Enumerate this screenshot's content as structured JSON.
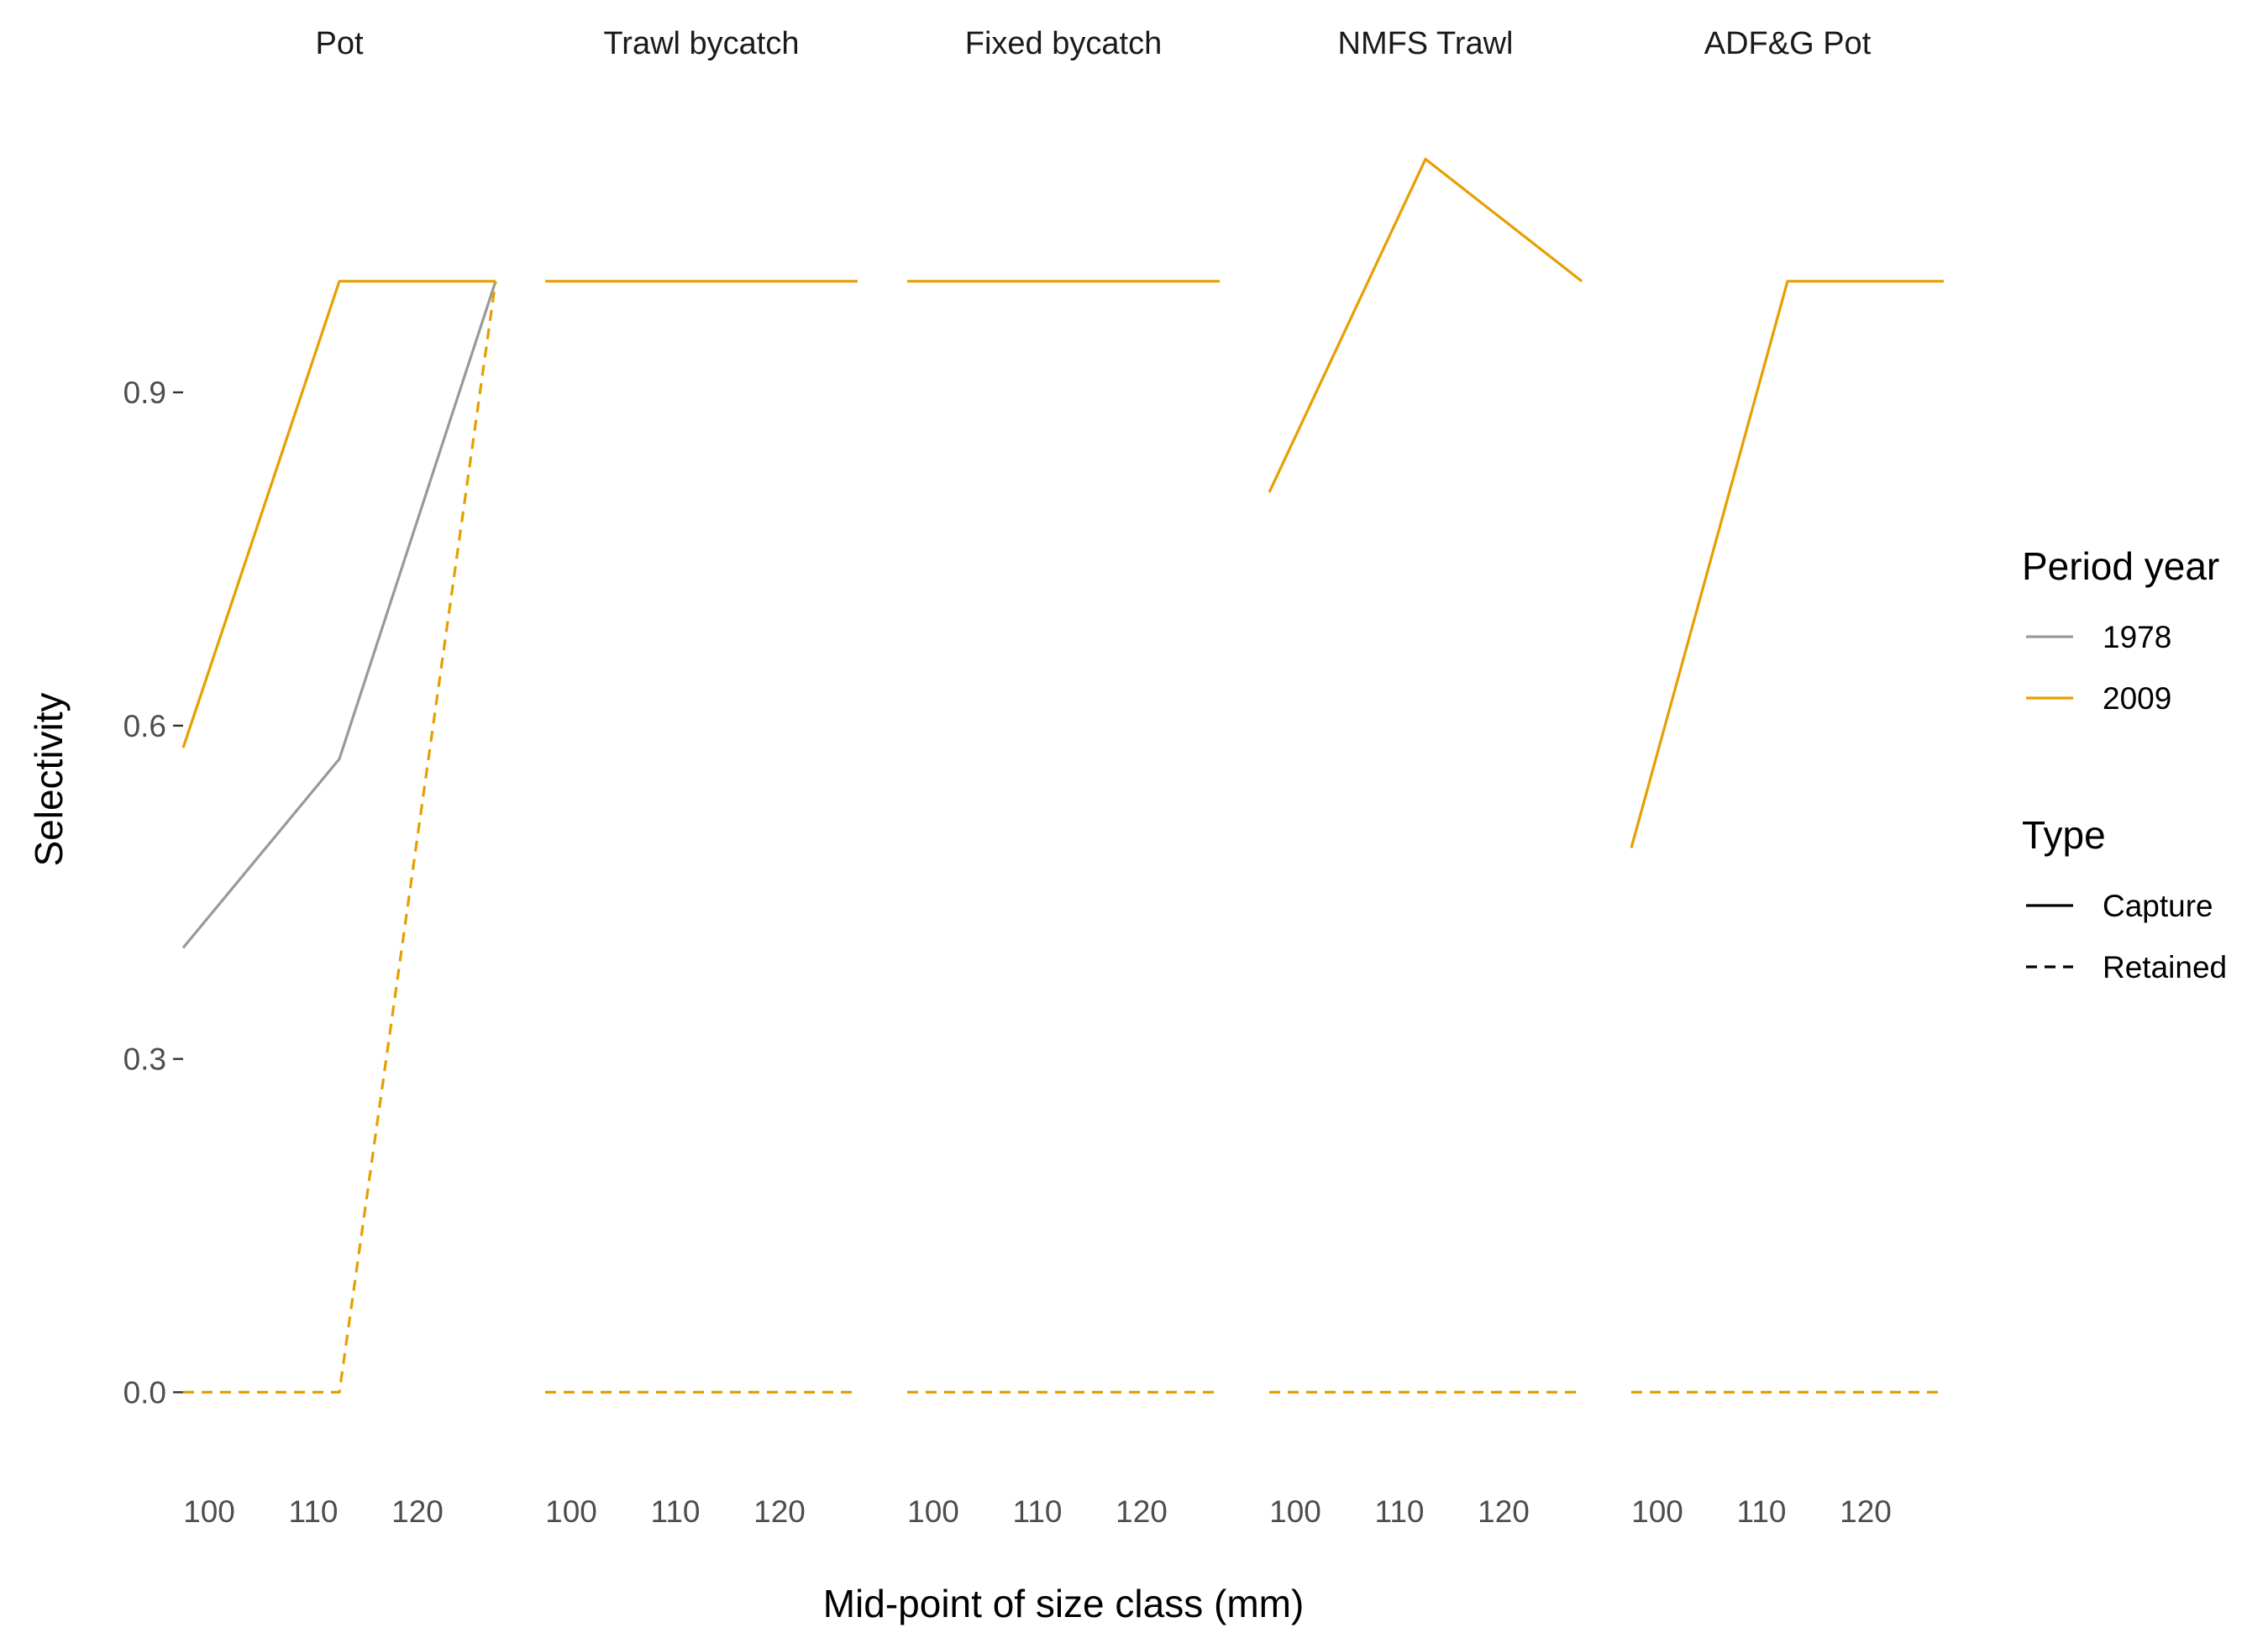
{
  "chart_data": {
    "type": "line",
    "xlabel": "Mid-point of size class (mm)",
    "ylabel": "Selectivity",
    "ylim": [
      -0.07,
      1.17
    ],
    "y_ticks": [
      0.0,
      0.3,
      0.6,
      0.9
    ],
    "y_tick_labels": [
      "0.0",
      "0.3",
      "0.6",
      "0.9"
    ],
    "xlim": [
      97.5,
      127.5
    ],
    "x_ticks": [
      100,
      110,
      120
    ],
    "x_tick_labels": [
      "100",
      "110",
      "120"
    ],
    "grid": false,
    "legend_placement": "right",
    "legends": [
      {
        "title": "Period year",
        "kind": "color",
        "entries": [
          {
            "label": "1978",
            "color": "#999999"
          },
          {
            "label": "2009",
            "color": "#E69F00"
          }
        ]
      },
      {
        "title": "Type",
        "kind": "linetype",
        "entries": [
          {
            "label": "Capture",
            "dash": "solid"
          },
          {
            "label": "Retained",
            "dash": "dashed"
          }
        ]
      }
    ],
    "panels": [
      {
        "title": "Pot",
        "series": [
          {
            "year": "1978",
            "type": "Capture",
            "color": "#999999",
            "x": [
              97.5,
              112.5,
              127.5
            ],
            "y": [
              0.4,
              0.57,
              1.0
            ]
          },
          {
            "year": "2009",
            "type": "Capture",
            "color": "#E69F00",
            "x": [
              97.5,
              112.5,
              127.5
            ],
            "y": [
              0.58,
              1.0,
              1.0
            ]
          },
          {
            "year": "2009",
            "type": "Retained",
            "color": "#E69F00",
            "x": [
              97.5,
              112.5,
              127.5
            ],
            "y": [
              0.0,
              0.0,
              1.0
            ]
          }
        ]
      },
      {
        "title": "Trawl bycatch",
        "series": [
          {
            "year": "2009",
            "type": "Capture",
            "color": "#E69F00",
            "x": [
              97.5,
              112.5,
              127.5
            ],
            "y": [
              1.0,
              1.0,
              1.0
            ]
          },
          {
            "year": "2009",
            "type": "Retained",
            "color": "#E69F00",
            "x": [
              97.5,
              112.5,
              127.5
            ],
            "y": [
              0.0,
              0.0,
              0.0
            ]
          }
        ]
      },
      {
        "title": "Fixed bycatch",
        "series": [
          {
            "year": "2009",
            "type": "Capture",
            "color": "#E69F00",
            "x": [
              97.5,
              112.5,
              127.5
            ],
            "y": [
              1.0,
              1.0,
              1.0
            ]
          },
          {
            "year": "2009",
            "type": "Retained",
            "color": "#E69F00",
            "x": [
              97.5,
              112.5,
              127.5
            ],
            "y": [
              0.0,
              0.0,
              0.0
            ]
          }
        ]
      },
      {
        "title": "NMFS Trawl",
        "series": [
          {
            "year": "2009",
            "type": "Capture",
            "color": "#E69F00",
            "x": [
              97.5,
              112.5,
              127.5
            ],
            "y": [
              0.81,
              1.11,
              1.0
            ]
          },
          {
            "year": "2009",
            "type": "Retained",
            "color": "#E69F00",
            "x": [
              97.5,
              112.5,
              127.5
            ],
            "y": [
              0.0,
              0.0,
              0.0
            ]
          }
        ]
      },
      {
        "title": "ADF&G Pot",
        "series": [
          {
            "year": "2009",
            "type": "Capture",
            "color": "#E69F00",
            "x": [
              97.5,
              112.5,
              127.5
            ],
            "y": [
              0.49,
              1.0,
              1.0
            ]
          },
          {
            "year": "2009",
            "type": "Retained",
            "color": "#E69F00",
            "x": [
              97.5,
              112.5,
              127.5
            ],
            "y": [
              0.0,
              0.0,
              0.0
            ]
          }
        ]
      }
    ]
  }
}
